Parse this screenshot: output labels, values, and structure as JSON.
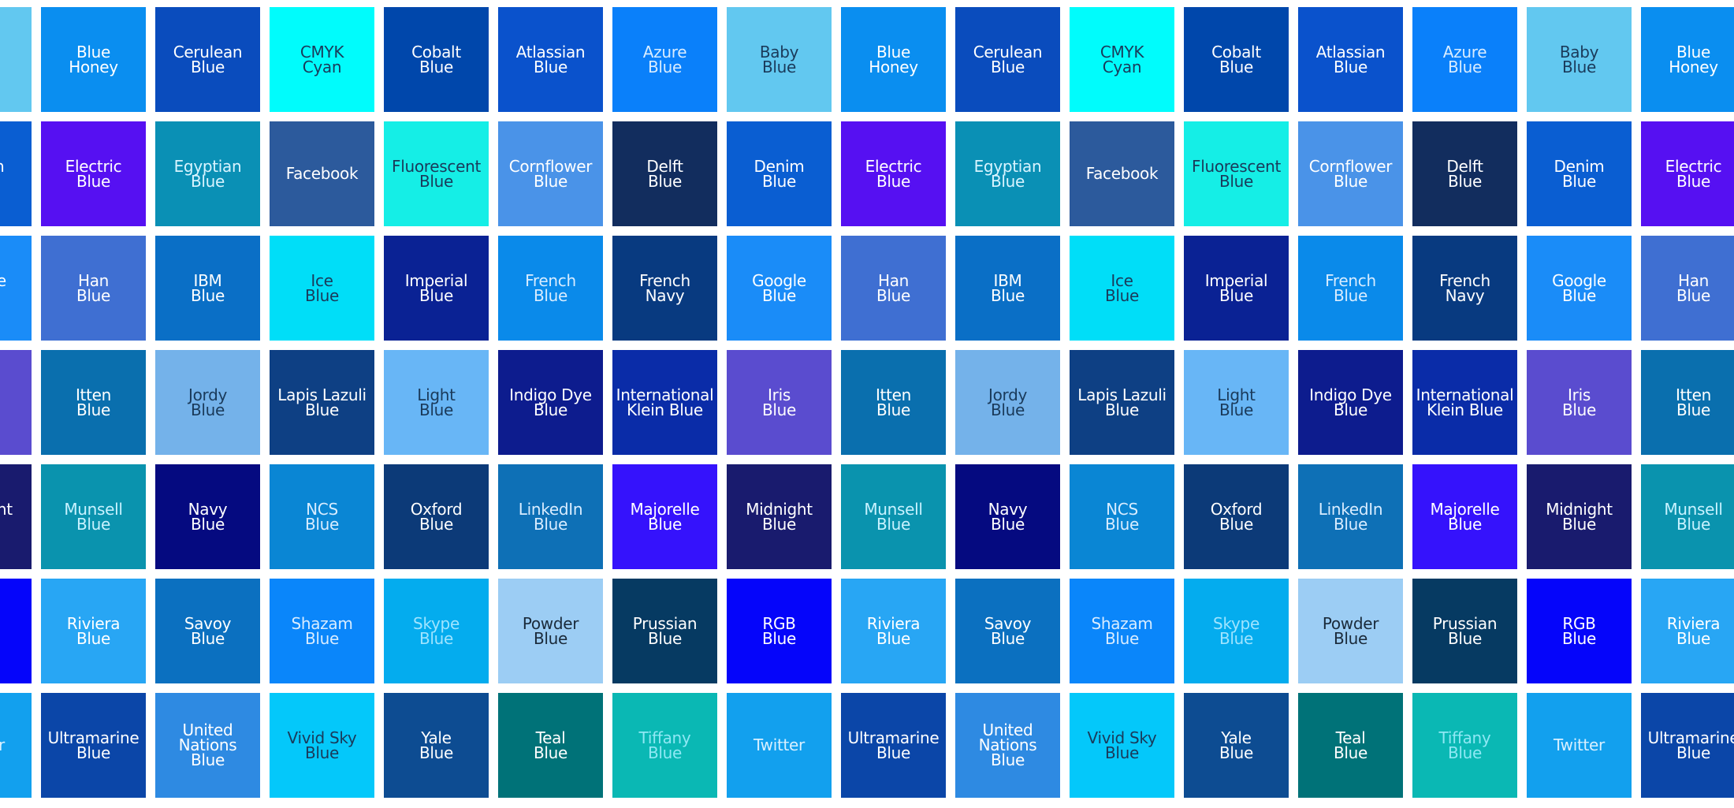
{
  "rows": [
    [
      {
        "label": [
          "Blue",
          "Honey"
        ],
        "color": "#0a8ef0",
        "text_color": "#ffffff"
      },
      {
        "label": [
          "Cerulean",
          "Blue"
        ],
        "color": "#0a4cbd",
        "text_color": "#ffffff"
      },
      {
        "label": [
          "CMYK",
          "Cyan"
        ],
        "color": "#00fcfc",
        "text_color": "#1a3a5a"
      },
      {
        "label": [
          "Cobalt",
          "Blue"
        ],
        "color": "#0047ab",
        "text_color": "#ffffff"
      },
      {
        "label": [
          "Atlassian",
          "Blue"
        ],
        "color": "#0a52cc",
        "text_color": "#ffffff"
      },
      {
        "label": [
          "Azure",
          "Blue"
        ],
        "color": "#0a80fa",
        "text_color": "#d8ecff"
      },
      {
        "label": [
          "Baby",
          "Blue"
        ],
        "color": "#62c8f0",
        "text_color": "#1a3a5a"
      }
    ],
    [
      {
        "label": [
          "Electric",
          "Blue"
        ],
        "color": "#5610f2",
        "text_color": "#ffffff"
      },
      {
        "label": [
          "Egyptian",
          "Blue"
        ],
        "color": "#0a90b5",
        "text_color": "#d8f4ff"
      },
      {
        "label": [
          "Facebook"
        ],
        "color": "#2c5a9c",
        "text_color": "#ffffff"
      },
      {
        "label": [
          "Fluorescent",
          "Blue"
        ],
        "color": "#15eee6",
        "text_color": "#1a3a5a"
      },
      {
        "label": [
          "Cornflower",
          "Blue"
        ],
        "color": "#4a93e8",
        "text_color": "#ffffff"
      },
      {
        "label": [
          "Delft",
          "Blue"
        ],
        "color": "#122d5e",
        "text_color": "#ffffff"
      },
      {
        "label": [
          "Denim",
          "Blue"
        ],
        "color": "#0a5ed2",
        "text_color": "#ffffff"
      }
    ],
    [
      {
        "label": [
          "Han",
          "Blue"
        ],
        "color": "#3f6fd2",
        "text_color": "#ffffff"
      },
      {
        "label": [
          "IBM",
          "Blue"
        ],
        "color": "#0a6fc6",
        "text_color": "#ffffff"
      },
      {
        "label": [
          "Ice",
          "Blue"
        ],
        "color": "#00def8",
        "text_color": "#1a3a5a"
      },
      {
        "label": [
          "Imperial",
          "Blue"
        ],
        "color": "#0a2294",
        "text_color": "#ffffff"
      },
      {
        "label": [
          "French",
          "Blue"
        ],
        "color": "#0a8aea",
        "text_color": "#d8ecff"
      },
      {
        "label": [
          "French",
          "Navy"
        ],
        "color": "#083a80",
        "text_color": "#ffffff"
      },
      {
        "label": [
          "Google",
          "Blue"
        ],
        "color": "#1a8cf8",
        "text_color": "#ffffff"
      }
    ],
    [
      {
        "label": [
          "Itten",
          "Blue"
        ],
        "color": "#0a6fae",
        "text_color": "#ffffff"
      },
      {
        "label": [
          "Jordy",
          "Blue"
        ],
        "color": "#74b2ea",
        "text_color": "#1a3a5a"
      },
      {
        "label": [
          "Lapis Lazuli",
          "Blue"
        ],
        "color": "#0e4084",
        "text_color": "#ffffff"
      },
      {
        "label": [
          "Light",
          "Blue"
        ],
        "color": "#68b6f6",
        "text_color": "#1a3a5a"
      },
      {
        "label": [
          "Indigo Dye",
          "Blue"
        ],
        "color": "#0d1c8e",
        "text_color": "#ffffff"
      },
      {
        "label": [
          "International",
          "Klein Blue"
        ],
        "color": "#0a2ca8",
        "text_color": "#ffffff"
      },
      {
        "label": [
          "Iris",
          "Blue"
        ],
        "color": "#5a4ccf",
        "text_color": "#ffffff"
      }
    ],
    [
      {
        "label": [
          "Munsell",
          "Blue"
        ],
        "color": "#0a93ae",
        "text_color": "#c8f2ff"
      },
      {
        "label": [
          "Navy",
          "Blue"
        ],
        "color": "#050a80",
        "text_color": "#ffffff"
      },
      {
        "label": [
          "NCS",
          "Blue"
        ],
        "color": "#0a86d4",
        "text_color": "#d8ecff"
      },
      {
        "label": [
          "Oxford",
          "Blue"
        ],
        "color": "#0c3a78",
        "text_color": "#ffffff"
      },
      {
        "label": [
          "LinkedIn",
          "Blue"
        ],
        "color": "#0e70b6",
        "text_color": "#d8ecff"
      },
      {
        "label": [
          "Majorelle",
          "Blue"
        ],
        "color": "#3512fc",
        "text_color": "#ffffff"
      },
      {
        "label": [
          "Midnight",
          "Blue"
        ],
        "color": "#191b6e",
        "text_color": "#ffffff"
      }
    ],
    [
      {
        "label": [
          "Riviera",
          "Blue"
        ],
        "color": "#28a6f4",
        "text_color": "#ffffff"
      },
      {
        "label": [
          "Savoy",
          "Blue"
        ],
        "color": "#0b70c0",
        "text_color": "#ffffff"
      },
      {
        "label": [
          "Shazam",
          "Blue"
        ],
        "color": "#0a86fa",
        "text_color": "#d8ecff"
      },
      {
        "label": [
          "Skype",
          "Blue"
        ],
        "color": "#04acee",
        "text_color": "#9fe4ff"
      },
      {
        "label": [
          "Powder",
          "Blue"
        ],
        "color": "#9ccdf4",
        "text_color": "#1a2a3a"
      },
      {
        "label": [
          "Prussian",
          "Blue"
        ],
        "color": "#063a62",
        "text_color": "#ffffff"
      },
      {
        "label": [
          "RGB",
          "Blue"
        ],
        "color": "#0505fa",
        "text_color": "#ffffff"
      }
    ],
    [
      {
        "label": [
          "Ultramarine",
          "Blue"
        ],
        "color": "#0b46a8",
        "text_color": "#ffffff"
      },
      {
        "label": [
          "United",
          "Nations",
          "Blue"
        ],
        "color": "#2e8ae2",
        "text_color": "#ffffff"
      },
      {
        "label": [
          "Vivid Sky",
          "Blue"
        ],
        "color": "#04c8fa",
        "text_color": "#1a3a5a"
      },
      {
        "label": [
          "Yale",
          "Blue"
        ],
        "color": "#0d4c92",
        "text_color": "#ffffff"
      },
      {
        "label": [
          "Teal",
          "Blue"
        ],
        "color": "#007278",
        "text_color": "#ffffff"
      },
      {
        "label": [
          "Tiffany",
          "Blue"
        ],
        "color": "#0ab8b4",
        "text_color": "#8fe8f4"
      },
      {
        "label": [
          "Twitter"
        ],
        "color": "#12a0ee",
        "text_color": "#d8f0ff"
      }
    ]
  ]
}
